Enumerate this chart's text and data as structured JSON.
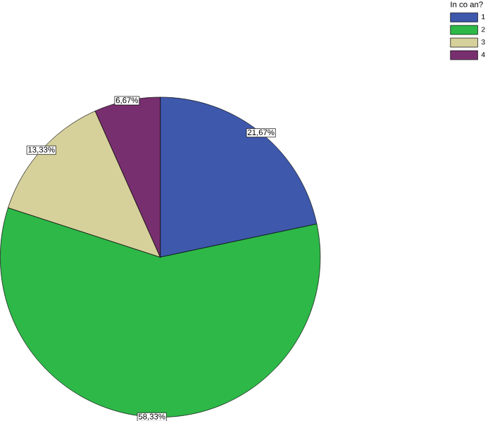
{
  "chart_data": {
    "type": "pie",
    "legend_title": "In co an?",
    "legend": "top right",
    "categories": [
      "1",
      "2",
      "3",
      "4"
    ],
    "values": [
      21.67,
      58.33,
      13.33,
      6.67
    ],
    "value_labels": [
      "21,67%",
      "58,33%",
      "13,33%",
      "6,67%"
    ],
    "colors": [
      "#3e58ac",
      "#2eb848",
      "#d6d19b",
      "#782f6f"
    ]
  }
}
